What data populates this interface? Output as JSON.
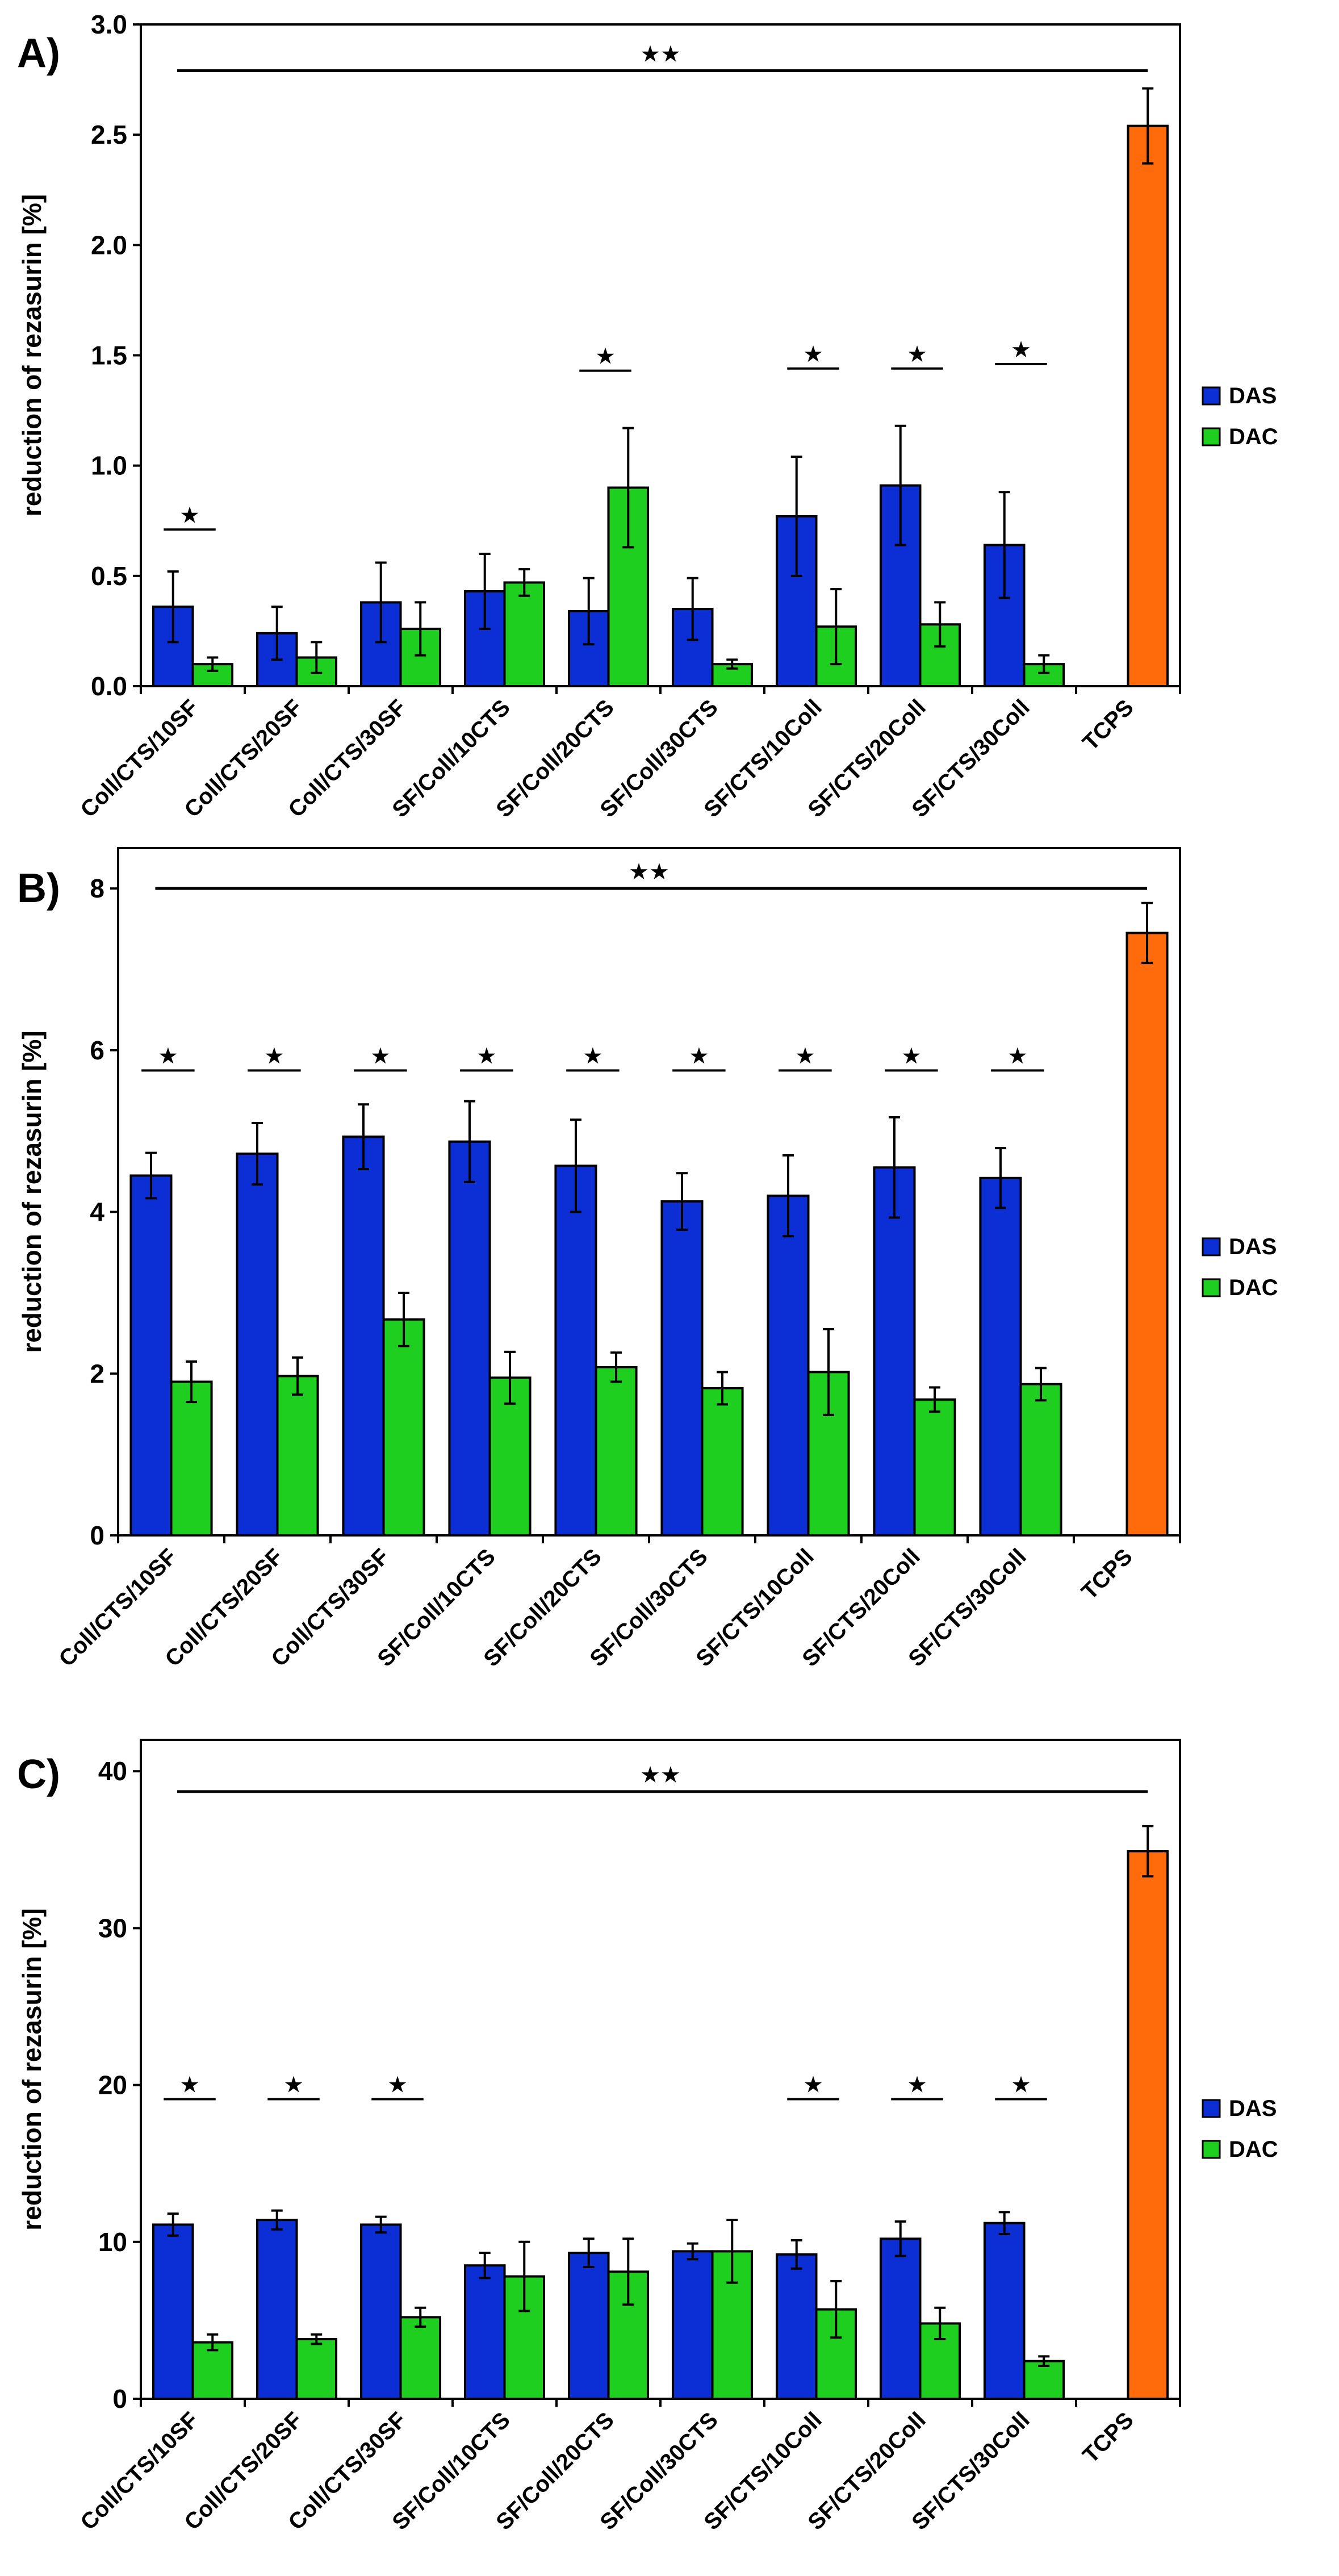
{
  "colors": {
    "DAS": "#0b2fd4",
    "DAC": "#1fcf1f",
    "TCPS": "#ff6a0a"
  },
  "chart_data": [
    {
      "type": "bar",
      "panel_label": "A)",
      "ylabel": "reduction of rezasurin [%]",
      "ylim": [
        0,
        3.0
      ],
      "yticks": [
        "0.0",
        "0.5",
        "1.0",
        "1.5",
        "2.0",
        "2.5",
        "3.0"
      ],
      "ytick_values": [
        0,
        0.5,
        1.0,
        1.5,
        2.0,
        2.5,
        3.0
      ],
      "categories": [
        "Coll/CTS/10SF",
        "Coll/CTS/20SF",
        "Coll/CTS/30SF",
        "SF/Coll/10CTS",
        "SF/Coll/20CTS",
        "SF/Coll/30CTS",
        "SF/CTS/10Coll",
        "SF/CTS/20Coll",
        "SF/CTS/30Coll",
        "TCPS"
      ],
      "legend": [
        "DAS",
        "DAC"
      ],
      "series": [
        {
          "name": "DAS",
          "values": [
            0.36,
            0.24,
            0.38,
            0.43,
            0.34,
            0.35,
            0.77,
            0.91,
            0.64,
            null
          ],
          "errors": [
            0.16,
            0.12,
            0.18,
            0.17,
            0.15,
            0.14,
            0.27,
            0.27,
            0.24,
            null
          ]
        },
        {
          "name": "DAC",
          "values": [
            0.1,
            0.13,
            0.26,
            0.47,
            0.9,
            0.1,
            0.27,
            0.28,
            0.1,
            null
          ],
          "errors": [
            0.03,
            0.07,
            0.12,
            0.06,
            0.27,
            0.02,
            0.17,
            0.1,
            0.04,
            null
          ]
        },
        {
          "name": "TCPS",
          "values": [
            null,
            null,
            null,
            null,
            null,
            null,
            null,
            null,
            null,
            2.54
          ],
          "errors": [
            null,
            null,
            null,
            null,
            null,
            null,
            null,
            null,
            null,
            0.17
          ]
        }
      ],
      "single_star_groups": [
        0,
        4,
        6,
        7,
        8
      ],
      "single_star_levels": [
        0.71,
        1.43,
        1.44,
        1.44,
        1.46
      ],
      "single_star": "★",
      "double_star": "★★",
      "double_star_level": 2.79
    },
    {
      "type": "bar",
      "panel_label": "B)",
      "ylabel": "reduction of rezasurin [%]",
      "ylim": [
        0,
        8.5
      ],
      "yticks": [
        "0",
        "2",
        "4",
        "6",
        "8"
      ],
      "ytick_values": [
        0,
        2,
        4,
        6,
        8
      ],
      "categories": [
        "Coll/CTS/10SF",
        "Coll/CTS/20SF",
        "Coll/CTS/30SF",
        "SF/Coll/10CTS",
        "SF/Coll/20CTS",
        "SF/Coll/30CTS",
        "SF/CTS/10Coll",
        "SF/CTS/20Coll",
        "SF/CTS/30Coll",
        "TCPS"
      ],
      "legend": [
        "DAS",
        "DAC"
      ],
      "series": [
        {
          "name": "DAS",
          "values": [
            4.45,
            4.72,
            4.93,
            4.87,
            4.57,
            4.13,
            4.2,
            4.55,
            4.42,
            null
          ],
          "errors": [
            0.28,
            0.38,
            0.4,
            0.5,
            0.57,
            0.35,
            0.5,
            0.62,
            0.37,
            null
          ]
        },
        {
          "name": "DAC",
          "values": [
            1.9,
            1.97,
            2.67,
            1.95,
            2.08,
            1.82,
            2.02,
            1.68,
            1.87,
            null
          ],
          "errors": [
            0.25,
            0.23,
            0.33,
            0.32,
            0.18,
            0.2,
            0.53,
            0.15,
            0.2,
            null
          ]
        },
        {
          "name": "TCPS",
          "values": [
            null,
            null,
            null,
            null,
            null,
            null,
            null,
            null,
            null,
            7.45
          ],
          "errors": [
            null,
            null,
            null,
            null,
            null,
            null,
            null,
            null,
            null,
            0.37
          ]
        }
      ],
      "single_star_groups": [
        0,
        1,
        2,
        3,
        4,
        5,
        6,
        7,
        8
      ],
      "single_star_levels": [
        5.75,
        5.75,
        5.75,
        5.75,
        5.75,
        5.75,
        5.75,
        5.75,
        5.75
      ],
      "single_star": "★",
      "double_star": "★★",
      "double_star_level": 8.0
    },
    {
      "type": "bar",
      "panel_label": "C)",
      "ylabel": "reduction of rezasurin [%]",
      "ylim": [
        0,
        42
      ],
      "yticks": [
        "0",
        "10",
        "20",
        "30",
        "40"
      ],
      "ytick_values": [
        0,
        10,
        20,
        30,
        40
      ],
      "categories": [
        "Coll/CTS/10SF",
        "Coll/CTS/20SF",
        "Coll/CTS/30SF",
        "SF/Coll/10CTS",
        "SF/Coll/20CTS",
        "SF/Coll/30CTS",
        "SF/CTS/10Coll",
        "SF/CTS/20Coll",
        "SF/CTS/30Coll",
        "TCPS"
      ],
      "legend": [
        "DAS",
        "DAC"
      ],
      "series": [
        {
          "name": "DAS",
          "values": [
            11.1,
            11.4,
            11.1,
            8.5,
            9.3,
            9.4,
            9.2,
            10.2,
            11.2,
            null
          ],
          "errors": [
            0.7,
            0.6,
            0.5,
            0.8,
            0.9,
            0.5,
            0.9,
            1.1,
            0.7,
            null
          ]
        },
        {
          "name": "DAC",
          "values": [
            3.6,
            3.8,
            5.2,
            7.8,
            8.1,
            9.4,
            5.7,
            4.8,
            2.4,
            null
          ],
          "errors": [
            0.5,
            0.3,
            0.6,
            2.2,
            2.1,
            2.0,
            1.8,
            1.0,
            0.3,
            null
          ]
        },
        {
          "name": "TCPS",
          "values": [
            null,
            null,
            null,
            null,
            null,
            null,
            null,
            null,
            null,
            34.9
          ],
          "errors": [
            null,
            null,
            null,
            null,
            null,
            null,
            null,
            null,
            null,
            1.6
          ]
        }
      ],
      "single_star_groups": [
        0,
        1,
        2,
        6,
        7,
        8
      ],
      "single_star_levels": [
        19.1,
        19.1,
        19.1,
        19.1,
        19.1,
        19.1
      ],
      "single_star": "★",
      "double_star": "★★",
      "double_star_level": 38.7
    }
  ]
}
